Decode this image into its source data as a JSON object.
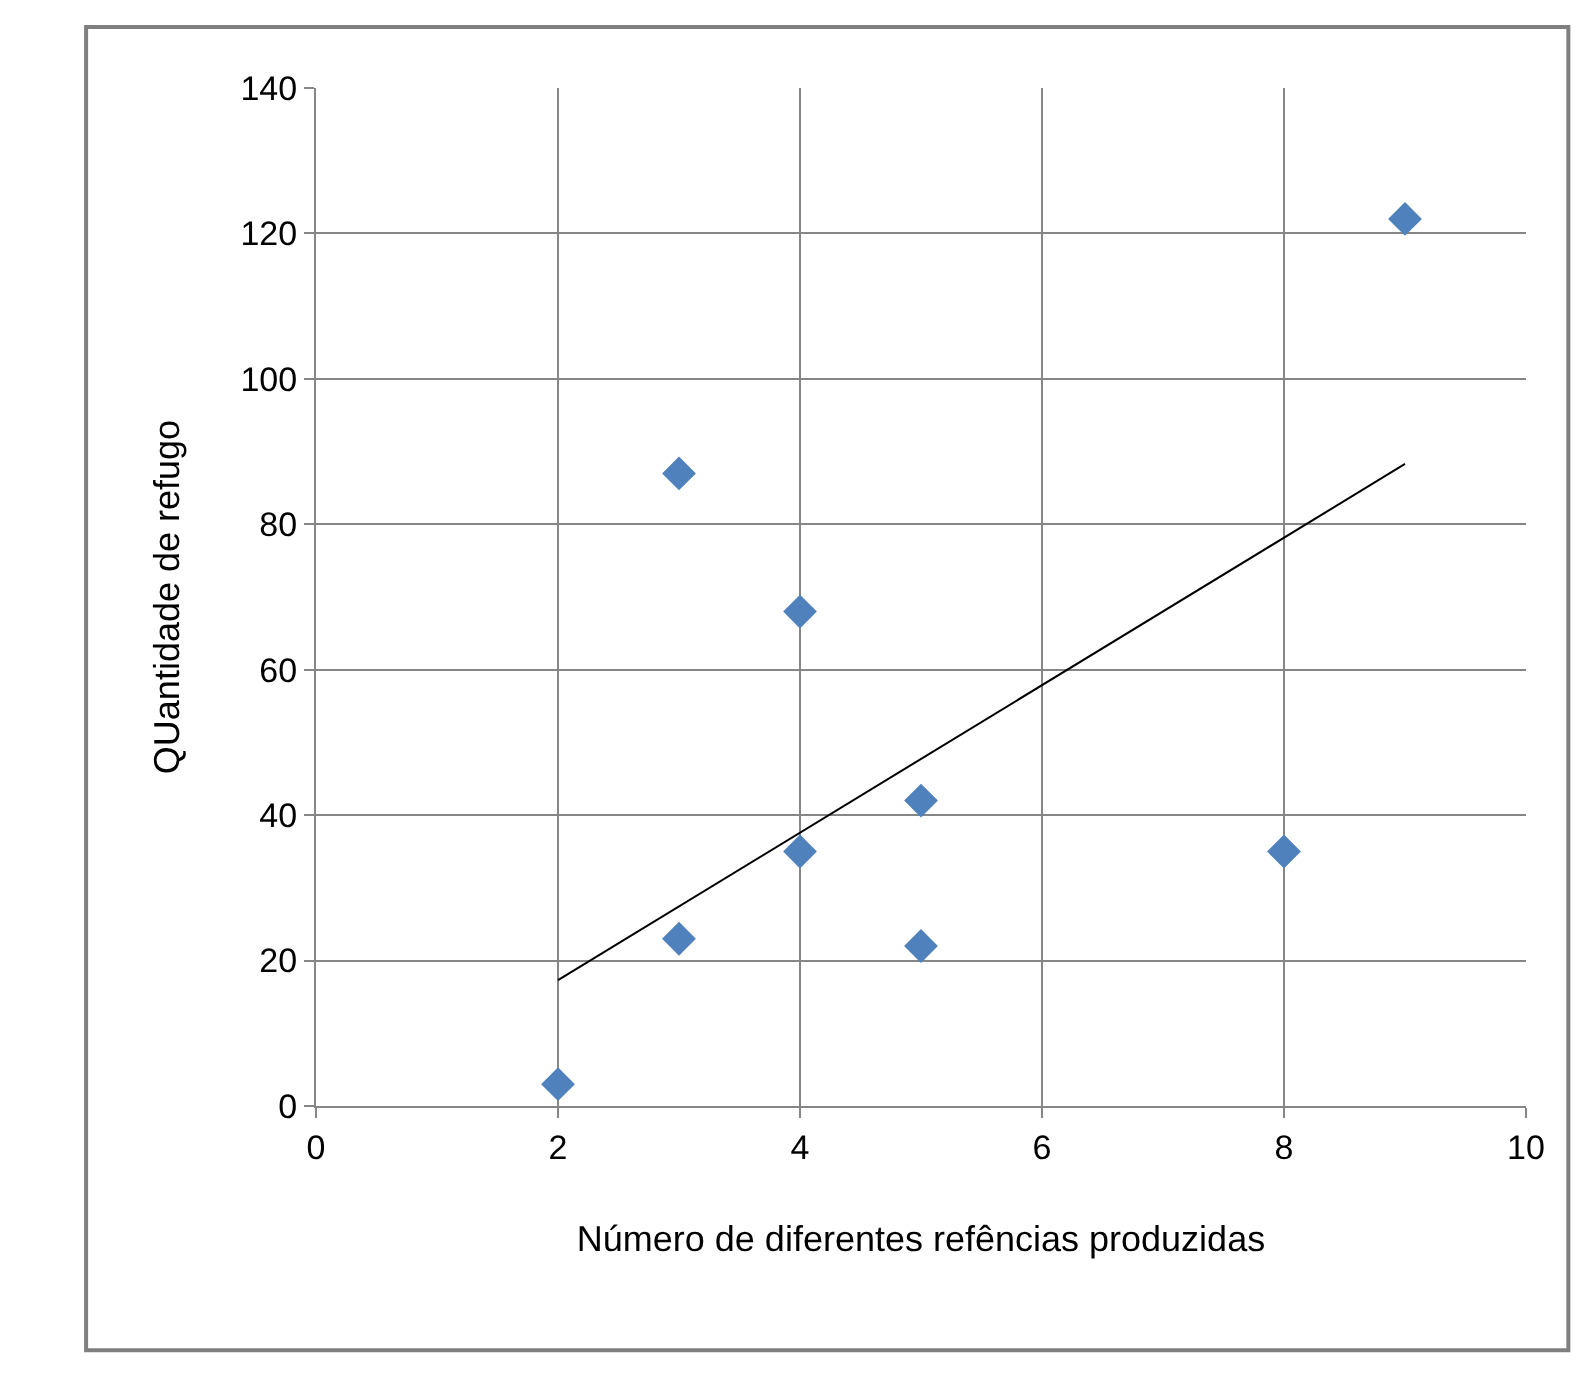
{
  "chart_data": {
    "type": "scatter",
    "xlabel": "Número de diferentes refências produzidas",
    "ylabel": "QUantidade de refugo",
    "xlim": [
      0,
      10
    ],
    "xticks": [
      0,
      2,
      4,
      6,
      8,
      10
    ],
    "ylim": [
      0,
      140
    ],
    "yticks": [
      0,
      20,
      40,
      60,
      80,
      100,
      120,
      140
    ],
    "grid": true,
    "legend": false,
    "marker": "diamond",
    "series": [
      {
        "color": "#4f81bd",
        "x": [
          2,
          3,
          3,
          4,
          4,
          5,
          5,
          8,
          9
        ],
        "values": [
          3,
          23,
          87,
          35,
          68,
          22,
          42,
          35,
          122
        ]
      },
      {
        "type": "line",
        "color": "#000000",
        "marker": "none",
        "line_style": "solid",
        "x": [
          2,
          9
        ],
        "values": [
          17.3,
          88.3
        ]
      }
    ]
  }
}
